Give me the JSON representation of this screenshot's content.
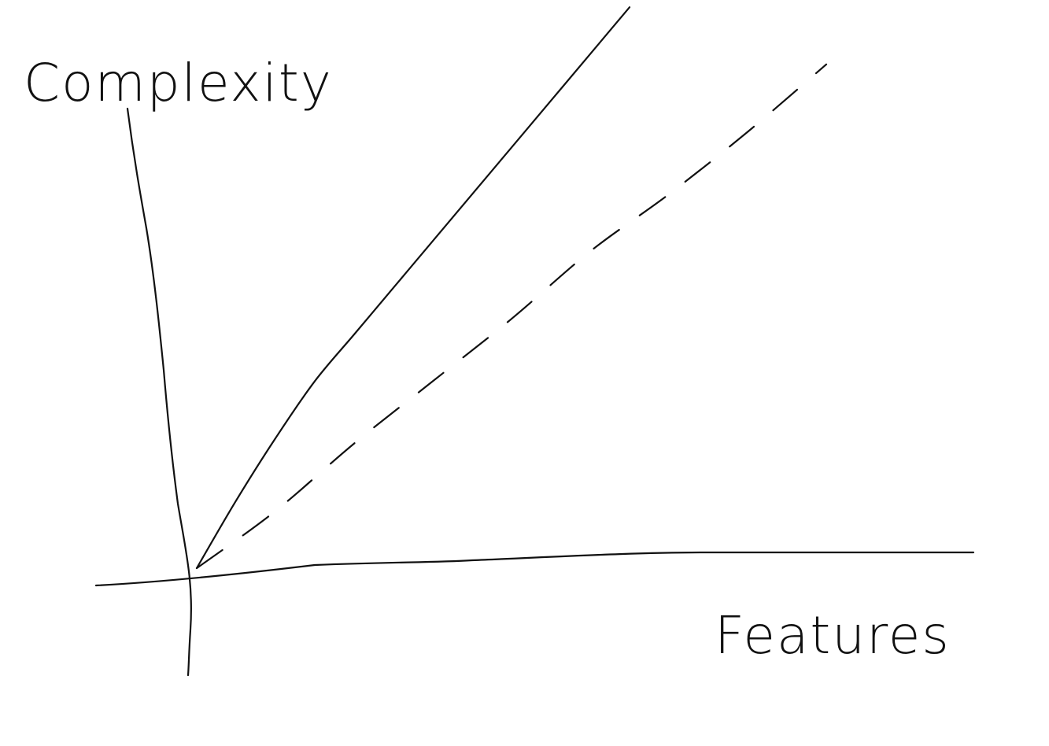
{
  "chart_data": {
    "type": "line",
    "title": "",
    "xlabel": "Features",
    "ylabel": "Complexity",
    "xlim": [
      0,
      10
    ],
    "ylim": [
      0,
      10
    ],
    "grid": false,
    "legend": "none",
    "ticks": "none",
    "colors": {
      "ink": "#111111",
      "background": "#ffffff"
    },
    "series": [
      {
        "style": "solid",
        "x": [
          0,
          0.5,
          1.0,
          1.5,
          2.0,
          2.5,
          3.0,
          4.0,
          5.5
        ],
        "y": [
          0,
          1.3,
          2.5,
          3.6,
          4.5,
          5.4,
          6.3,
          8.1,
          10.8
        ]
      },
      {
        "style": "dashed",
        "x": [
          0,
          1.0,
          2.0,
          3.0,
          4.0,
          5.0,
          6.0,
          7.0,
          8.0
        ],
        "y": [
          0,
          1.1,
          2.4,
          3.6,
          4.8,
          6.1,
          7.2,
          8.4,
          9.7
        ]
      }
    ]
  }
}
